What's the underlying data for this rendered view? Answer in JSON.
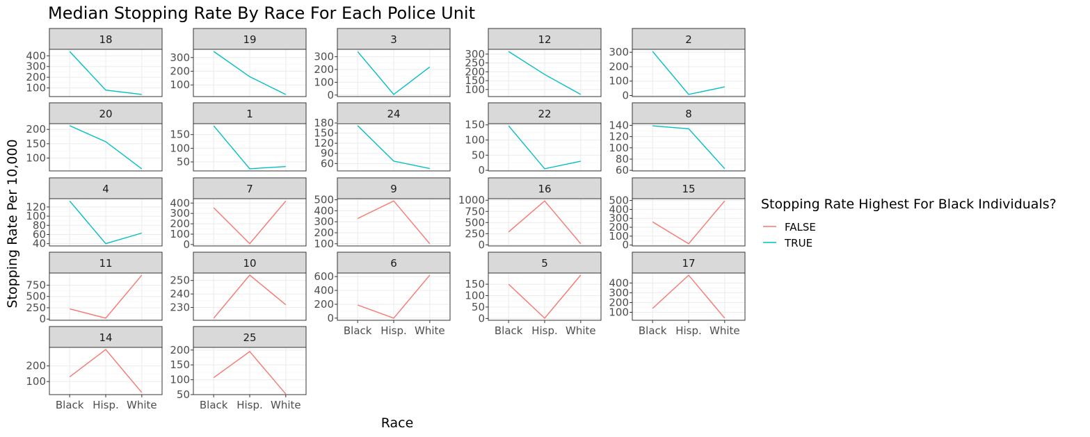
{
  "chart_data": {
    "type": "line",
    "title": "Median Stopping Rate By Race For Each Police Unit",
    "xlabel": "Race",
    "ylabel": "Stopping Rate Per 10,000",
    "categories": [
      "Black",
      "Hisp.",
      "White"
    ],
    "legend": {
      "title": "Stopping Rate Highest For Black Individuals?",
      "position": "right",
      "entries": [
        {
          "label": "FALSE",
          "color": "#F8766D"
        },
        {
          "label": "TRUE",
          "color": "#00BFC4"
        }
      ]
    },
    "facet_scales": "free_y",
    "panels": [
      {
        "unit": "18",
        "highest_black": "TRUE",
        "values": [
          440,
          80,
          40
        ],
        "ylim": [
          20,
          460
        ],
        "yticks": [
          100,
          200,
          300,
          400
        ]
      },
      {
        "unit": "19",
        "highest_black": "TRUE",
        "values": [
          345,
          160,
          30
        ],
        "ylim": [
          15,
          360
        ],
        "yticks": [
          100,
          200,
          300
        ]
      },
      {
        "unit": "3",
        "highest_black": "TRUE",
        "values": [
          340,
          5,
          220
        ],
        "ylim": [
          -12,
          358
        ],
        "yticks": [
          0,
          100,
          200,
          300
        ]
      },
      {
        "unit": "12",
        "highest_black": "TRUE",
        "values": [
          315,
          185,
          72
        ],
        "ylim": [
          60,
          327
        ],
        "yticks": [
          100,
          150,
          200,
          250,
          300
        ]
      },
      {
        "unit": "2",
        "highest_black": "TRUE",
        "values": [
          305,
          8,
          60
        ],
        "ylim": [
          -7,
          320
        ],
        "yticks": [
          0,
          100,
          200,
          300
        ]
      },
      {
        "unit": "20",
        "highest_black": "TRUE",
        "values": [
          213,
          157,
          62
        ],
        "ylim": [
          55,
          220
        ],
        "yticks": [
          100,
          150,
          200
        ]
      },
      {
        "unit": "1",
        "highest_black": "TRUE",
        "values": [
          182,
          25,
          33
        ],
        "ylim": [
          17,
          190
        ],
        "yticks": [
          50,
          100,
          150
        ]
      },
      {
        "unit": "24",
        "highest_black": "TRUE",
        "values": [
          172,
          67,
          45
        ],
        "ylim": [
          38,
          178
        ],
        "yticks": [
          60,
          90,
          120,
          150,
          180
        ]
      },
      {
        "unit": "22",
        "highest_black": "TRUE",
        "values": [
          147,
          5,
          30
        ],
        "ylim": [
          -2,
          154
        ],
        "yticks": [
          0,
          50,
          100,
          150
        ]
      },
      {
        "unit": "8",
        "highest_black": "TRUE",
        "values": [
          139,
          134,
          63
        ],
        "ylim": [
          59,
          143
        ],
        "yticks": [
          60,
          80,
          100,
          120,
          140
        ]
      },
      {
        "unit": "4",
        "highest_black": "TRUE",
        "values": [
          133,
          40,
          63
        ],
        "ylim": [
          35,
          138
        ],
        "yticks": [
          40,
          60,
          80,
          100,
          120
        ]
      },
      {
        "unit": "7",
        "highest_black": "FALSE",
        "values": [
          355,
          8,
          420
        ],
        "ylim": [
          -14,
          442
        ],
        "yticks": [
          0,
          100,
          200,
          300,
          400
        ]
      },
      {
        "unit": "9",
        "highest_black": "FALSE",
        "values": [
          330,
          490,
          100
        ],
        "ylim": [
          80,
          510
        ],
        "yticks": [
          100,
          200,
          300,
          400,
          500
        ]
      },
      {
        "unit": "16",
        "highest_black": "FALSE",
        "values": [
          290,
          985,
          25
        ],
        "ylim": [
          -25,
          1035
        ],
        "yticks": [
          0,
          250,
          500,
          750,
          1000
        ]
      },
      {
        "unit": "15",
        "highest_black": "FALSE",
        "values": [
          260,
          15,
          495
        ],
        "ylim": [
          -10,
          520
        ],
        "yticks": [
          0,
          100,
          200,
          300,
          400,
          500
        ]
      },
      {
        "unit": "11",
        "highest_black": "FALSE",
        "values": [
          225,
          20,
          970
        ],
        "ylim": [
          -27,
          1018
        ],
        "yticks": [
          0,
          250,
          500,
          750
        ]
      },
      {
        "unit": "10",
        "highest_black": "FALSE",
        "values": [
          222,
          254,
          232
        ],
        "ylim": [
          220.5,
          255.5
        ],
        "yticks": [
          230,
          240,
          250
        ]
      },
      {
        "unit": "6",
        "highest_black": "FALSE",
        "values": [
          190,
          0,
          620
        ],
        "ylim": [
          -31,
          651
        ],
        "yticks": [
          0,
          200,
          400,
          600
        ]
      },
      {
        "unit": "5",
        "highest_black": "FALSE",
        "values": [
          150,
          1,
          190
        ],
        "ylim": [
          -8,
          199
        ],
        "yticks": [
          0,
          50,
          100,
          150
        ]
      },
      {
        "unit": "17",
        "highest_black": "FALSE",
        "values": [
          140,
          480,
          40
        ],
        "ylim": [
          18,
          502
        ],
        "yticks": [
          100,
          200,
          300,
          400
        ]
      },
      {
        "unit": "14",
        "highest_black": "FALSE",
        "values": [
          130,
          305,
          30
        ],
        "ylim": [
          16,
          319
        ],
        "yticks": [
          100,
          200
        ]
      },
      {
        "unit": "25",
        "highest_black": "FALSE",
        "values": [
          107,
          195,
          52
        ],
        "ylim": [
          50,
          209
        ],
        "yticks": [
          50,
          100,
          150,
          200
        ]
      }
    ]
  }
}
